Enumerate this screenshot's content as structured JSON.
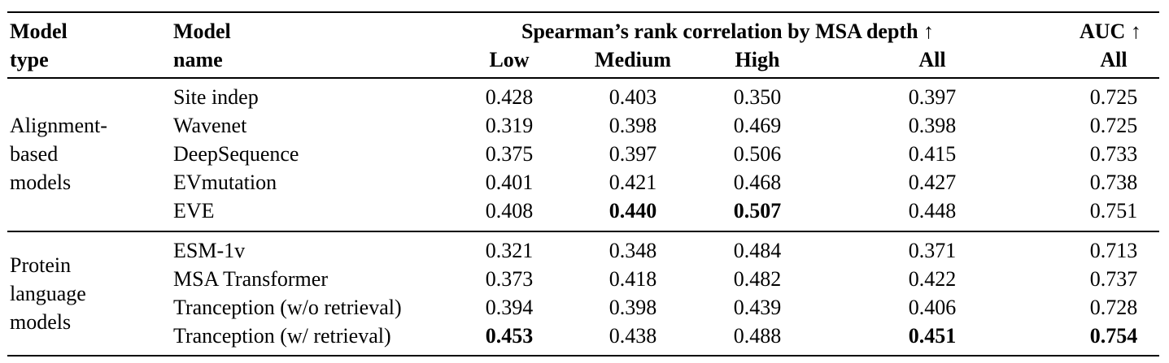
{
  "header": {
    "model_type": [
      "Model",
      "type"
    ],
    "model_name": [
      "Model",
      "name"
    ],
    "spearman_group": "Spearman’s rank correlation by MSA depth",
    "auc_group": "AUC",
    "arrow": "↑",
    "subcols": [
      "Low",
      "Medium",
      "High",
      "All",
      "All"
    ]
  },
  "groups": [
    {
      "type_lines": [
        "Alignment-",
        "based",
        "models"
      ],
      "rows": [
        {
          "name": "Site indep",
          "values": [
            "0.428",
            "0.403",
            "0.350",
            "0.397",
            "0.725"
          ],
          "bold": [
            false,
            false,
            false,
            false,
            false
          ]
        },
        {
          "name": "Wavenet",
          "values": [
            "0.319",
            "0.398",
            "0.469",
            "0.398",
            "0.725"
          ],
          "bold": [
            false,
            false,
            false,
            false,
            false
          ]
        },
        {
          "name": "DeepSequence",
          "values": [
            "0.375",
            "0.397",
            "0.506",
            "0.415",
            "0.733"
          ],
          "bold": [
            false,
            false,
            false,
            false,
            false
          ]
        },
        {
          "name": "EVmutation",
          "values": [
            "0.401",
            "0.421",
            "0.468",
            "0.427",
            "0.738"
          ],
          "bold": [
            false,
            false,
            false,
            false,
            false
          ]
        },
        {
          "name": "EVE",
          "values": [
            "0.408",
            "0.440",
            "0.507",
            "0.448",
            "0.751"
          ],
          "bold": [
            false,
            true,
            true,
            false,
            false
          ]
        }
      ]
    },
    {
      "type_lines": [
        "Protein",
        "language",
        "models"
      ],
      "rows": [
        {
          "name": "ESM-1v",
          "values": [
            "0.321",
            "0.348",
            "0.484",
            "0.371",
            "0.713"
          ],
          "bold": [
            false,
            false,
            false,
            false,
            false
          ]
        },
        {
          "name": "MSA Transformer",
          "values": [
            "0.373",
            "0.418",
            "0.482",
            "0.422",
            "0.737"
          ],
          "bold": [
            false,
            false,
            false,
            false,
            false
          ]
        },
        {
          "name": "Tranception (w/o retrieval)",
          "values": [
            "0.394",
            "0.398",
            "0.439",
            "0.406",
            "0.728"
          ],
          "bold": [
            false,
            false,
            false,
            false,
            false
          ]
        },
        {
          "name": "Tranception (w/ retrieval)",
          "values": [
            "0.453",
            "0.438",
            "0.488",
            "0.451",
            "0.754"
          ],
          "bold": [
            true,
            false,
            false,
            true,
            true
          ]
        }
      ]
    }
  ]
}
